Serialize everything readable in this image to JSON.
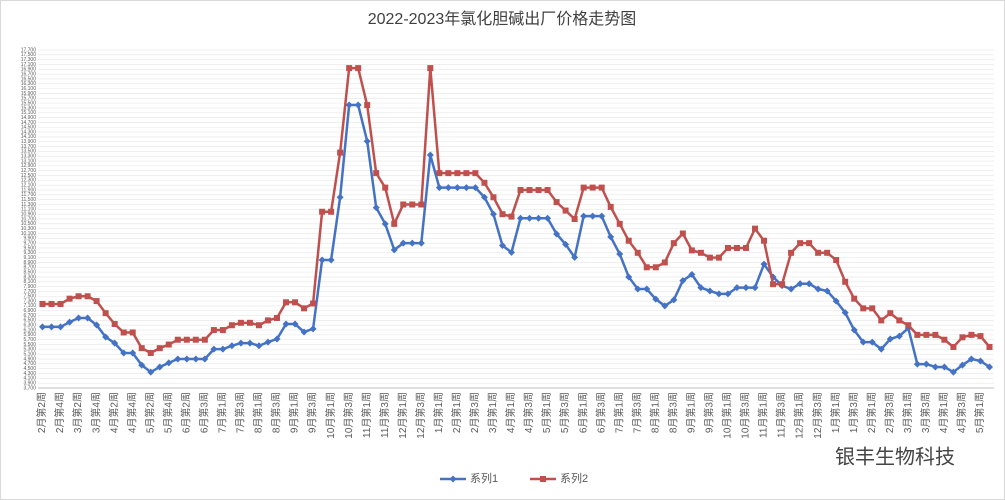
{
  "chart_data": {
    "type": "line",
    "title": "2022-2023年氯化胆碱出厂价格走势图",
    "annotations": [
      "银丰生物科技"
    ],
    "categories": [
      "2月第2周",
      null,
      "2月第4周",
      null,
      "3月第2周",
      null,
      "3月第4周",
      null,
      "4月第2周",
      null,
      "4月第4周",
      null,
      "5月第2周",
      null,
      "5月第4周",
      null,
      "6月第2周",
      null,
      "6月第3周",
      null,
      "7月第1周",
      null,
      "7月第3周",
      null,
      "8月第1周",
      null,
      "8月第3周",
      null,
      "9月第1周",
      null,
      "9月第3周",
      null,
      "10月第1周",
      null,
      "10月第3周",
      null,
      "11月第1周",
      null,
      "11月第3周",
      null,
      "12月第1周",
      null,
      "12月第3周",
      null,
      "1月第1周",
      null,
      "2月第1周",
      null,
      "2月第3周",
      null,
      "3月第1周",
      null,
      "4月第1周",
      null,
      "4月第3周",
      null,
      "5月第1周",
      null,
      "5月第3周",
      null,
      "6月第1周",
      null,
      "6月第3周",
      null,
      "7月第1周",
      null,
      "7月第3周",
      null,
      "8月第1周",
      null,
      "8月第3周",
      null,
      "9月第1周",
      null,
      "9月第3周",
      null,
      "10月第1周",
      null,
      "10月第3周",
      null,
      "11月第1周",
      null,
      "11月第3周",
      null,
      "12月第1周",
      null,
      "12月第3周",
      null,
      "1月第1周",
      null,
      "1月第3周",
      null,
      "2月第1周",
      null,
      "2月第3周",
      null,
      "3月第1周",
      null,
      "3月第3周",
      null,
      "4月第1周",
      null,
      "4月第3周",
      null,
      "5月第1周",
      null
    ],
    "series": [
      {
        "name": "系列1",
        "color": "#4472c4",
        "values": [
          6230,
          6230,
          6230,
          6430,
          6600,
          6600,
          6310,
          5810,
          5560,
          5150,
          5150,
          4650,
          4360,
          4570,
          4740,
          4900,
          4900,
          4900,
          4900,
          5310,
          5310,
          5450,
          5560,
          5560,
          5450,
          5600,
          5730,
          6350,
          6350,
          6020,
          6150,
          9000,
          9000,
          11600,
          15420,
          15420,
          13920,
          11170,
          10500,
          9420,
          9700,
          9700,
          9700,
          13350,
          12000,
          12000,
          12000,
          12000,
          12000,
          11600,
          10900,
          9600,
          9320,
          10730,
          10730,
          10730,
          10730,
          10080,
          9650,
          9110,
          10820,
          10820,
          10820,
          9960,
          9250,
          8300,
          7800,
          7800,
          7380,
          7100,
          7350,
          8150,
          8400,
          7860,
          7720,
          7600,
          7600,
          7860,
          7860,
          7860,
          8830,
          8300,
          7940,
          7800,
          8020,
          8020,
          7800,
          7720,
          7300,
          6820,
          6100,
          5600,
          5600,
          5310,
          5730,
          5850,
          6180,
          4690,
          4690,
          4570,
          4570,
          4360,
          4650,
          4900,
          4820,
          4570
        ]
      },
      {
        "name": "系列2",
        "color": "#c0504d",
        "values": [
          7180,
          7180,
          7180,
          7400,
          7500,
          7500,
          7300,
          6800,
          6350,
          6000,
          6000,
          5350,
          5150,
          5350,
          5500,
          5700,
          5700,
          5700,
          5700,
          6100,
          6100,
          6300,
          6400,
          6400,
          6300,
          6500,
          6600,
          7250,
          7250,
          7000,
          7200,
          11000,
          11000,
          13450,
          16950,
          16950,
          15420,
          12600,
          12000,
          10500,
          11300,
          11300,
          11300,
          16950,
          12600,
          12600,
          12600,
          12600,
          12600,
          12200,
          11600,
          10900,
          10800,
          11900,
          11900,
          11900,
          11900,
          11400,
          11050,
          10700,
          12000,
          12000,
          12000,
          11200,
          10500,
          9800,
          9300,
          8700,
          8700,
          8900,
          9700,
          10100,
          9400,
          9300,
          9100,
          9100,
          9500,
          9500,
          9500,
          10300,
          9800,
          8000,
          8000,
          9300,
          9700,
          9700,
          9300,
          9300,
          9000,
          8100,
          7400,
          7000,
          7000,
          6500,
          6800,
          6500,
          6300,
          5900,
          5900,
          5900,
          5700,
          5400,
          5800,
          5900,
          5850,
          5400
        ]
      }
    ],
    "ylim": [
      3700,
      17700
    ],
    "yticks": [
      {
        "value": 3700,
        "label": "3,700"
      },
      {
        "value": 3900,
        "label": "3,900"
      },
      {
        "value": 4100,
        "label": "4,100"
      },
      {
        "value": 4300,
        "label": "4,300"
      },
      {
        "value": 4500,
        "label": "4,500"
      },
      {
        "value": 4700,
        "label": "4,700"
      },
      {
        "value": 4900,
        "label": "4,900"
      },
      {
        "value": 5100,
        "label": "5,100"
      },
      {
        "value": 5300,
        "label": "5,300"
      },
      {
        "value": 5500,
        "label": "5,500"
      },
      {
        "value": 5700,
        "label": "5,700"
      },
      {
        "value": 5900,
        "label": "5,900"
      },
      {
        "value": 6100,
        "label": "6,100"
      },
      {
        "value": 6300,
        "label": "6,300"
      },
      {
        "value": 6500,
        "label": "6,500"
      },
      {
        "value": 6700,
        "label": "6,700"
      },
      {
        "value": 6900,
        "label": "6,900"
      },
      {
        "value": 7100,
        "label": "7,100"
      },
      {
        "value": 7300,
        "label": "7,300"
      },
      {
        "value": 7500,
        "label": "7,500"
      },
      {
        "value": 7700,
        "label": "7,700"
      },
      {
        "value": 7900,
        "label": "7,900"
      },
      {
        "value": 8100,
        "label": "8,100"
      },
      {
        "value": 8300,
        "label": "8,300"
      },
      {
        "value": 8500,
        "label": "8,500"
      },
      {
        "value": 8700,
        "label": "8,700"
      },
      {
        "value": 8900,
        "label": "8,900"
      },
      {
        "value": 9100,
        "label": "9,100"
      },
      {
        "value": 9300,
        "label": "9,300"
      },
      {
        "value": 9500,
        "label": "9,500"
      },
      {
        "value": 9700,
        "label": "9,700"
      },
      {
        "value": 9900,
        "label": "9,900"
      },
      {
        "value": 10100,
        "label": "10,100"
      },
      {
        "value": 10300,
        "label": "10,300"
      },
      {
        "value": 10500,
        "label": "10,500"
      },
      {
        "value": 10700,
        "label": "10,700"
      },
      {
        "value": 10900,
        "label": "10,900"
      },
      {
        "value": 11100,
        "label": "11,100"
      },
      {
        "value": 11300,
        "label": "11,300"
      },
      {
        "value": 11500,
        "label": "11,500"
      },
      {
        "value": 11700,
        "label": "11,700"
      },
      {
        "value": 11900,
        "label": "11,900"
      },
      {
        "value": 12100,
        "label": "12,100"
      },
      {
        "value": 12300,
        "label": "12,300"
      },
      {
        "value": 12500,
        "label": "12,500"
      },
      {
        "value": 12700,
        "label": "12,700"
      },
      {
        "value": 12900,
        "label": "12,900"
      },
      {
        "value": 13100,
        "label": "13,100"
      },
      {
        "value": 13300,
        "label": "13,300"
      },
      {
        "value": 13500,
        "label": "13,500"
      },
      {
        "value": 13700,
        "label": "13,700"
      },
      {
        "value": 13900,
        "label": "13,900"
      },
      {
        "value": 14100,
        "label": "14,100"
      },
      {
        "value": 14300,
        "label": "14,300"
      },
      {
        "value": 14500,
        "label": "14,500"
      },
      {
        "value": 14700,
        "label": "14,700"
      },
      {
        "value": 14900,
        "label": "14,900"
      },
      {
        "value": 15100,
        "label": "15,100"
      },
      {
        "value": 15300,
        "label": "15,300"
      },
      {
        "value": 15500,
        "label": "15,500"
      },
      {
        "value": 15700,
        "label": "15,700"
      },
      {
        "value": 15900,
        "label": "15,900"
      },
      {
        "value": 16100,
        "label": "16,100"
      },
      {
        "value": 16300,
        "label": "16,300"
      },
      {
        "value": 16500,
        "label": "16,500"
      },
      {
        "value": 16700,
        "label": "16,700"
      },
      {
        "value": 16900,
        "label": "16,900"
      },
      {
        "value": 17100,
        "label": "17,100"
      },
      {
        "value": 17300,
        "label": "17,300"
      },
      {
        "value": 17500,
        "label": "17,500"
      },
      {
        "value": 17700,
        "label": "17,700"
      }
    ],
    "grid": true,
    "legend": "bottom"
  }
}
